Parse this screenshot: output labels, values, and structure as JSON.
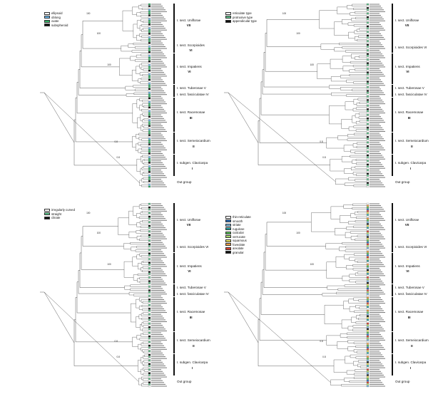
{
  "panels": [
    {
      "id": "tl",
      "legend": {
        "items": [
          {
            "label": "ellipsoid",
            "color": "#ffffff"
          },
          {
            "label": "oblong",
            "color": "#6bb5e8"
          },
          {
            "label": "ovate",
            "color": "#33b366"
          },
          {
            "label": "subspheroid",
            "color": "#111111"
          }
        ]
      },
      "sections": [
        {
          "name": "I. sect. Uniflorae",
          "roman": "VII"
        },
        {
          "name": "I. sect. Scorpioides",
          "roman": "VI"
        },
        {
          "name": "I. sect. Impatiens",
          "roman": "VI"
        },
        {
          "name": "I. sect. Tuberosae V",
          "roman": ""
        },
        {
          "name": "I. sect. fasciculatae IV",
          "roman": ""
        },
        {
          "name": "I. sect. Racemosae",
          "roman": "III"
        },
        {
          "name": "I. sect. Semeiocardium",
          "roman": "II"
        },
        {
          "name": "I. subgen. Clavicarpa",
          "roman": "I"
        },
        {
          "name": "Out group",
          "roman": ""
        }
      ]
    },
    {
      "id": "tr",
      "legend": {
        "items": [
          {
            "label": "reticulate type",
            "color": "#ffffff"
          },
          {
            "label": "protrusive type",
            "color": "#5fc08a"
          },
          {
            "label": "appendicular type",
            "color": "#111111"
          }
        ]
      },
      "sections": [
        {
          "name": "I. sect. Uniflorae",
          "roman": "VII"
        },
        {
          "name": "I. sect. Scorpioides VI",
          "roman": ""
        },
        {
          "name": "I. sect. Impatiens",
          "roman": "VI"
        },
        {
          "name": "I. sect. Tuberosae V",
          "roman": ""
        },
        {
          "name": "I. sect. fasciculatae IV",
          "roman": ""
        },
        {
          "name": "I. sect. Racemosae",
          "roman": "III"
        },
        {
          "name": "I. sect. Semeiocardium",
          "roman": "II"
        },
        {
          "name": "I. subgen. Clavicarpa",
          "roman": "I"
        },
        {
          "name": "Out group",
          "roman": ""
        }
      ]
    },
    {
      "id": "bl",
      "legend": {
        "items": [
          {
            "label": "irregularly curved",
            "color": "#ffffff"
          },
          {
            "label": "straight",
            "color": "#5fc08a"
          },
          {
            "label": "clinate",
            "color": "#111111"
          }
        ]
      },
      "sections": [
        {
          "name": "I. sect. Uniflorae",
          "roman": "VII"
        },
        {
          "name": "I. sect. Scorpioides VI",
          "roman": ""
        },
        {
          "name": "I. sect. Impatiens",
          "roman": "VI"
        },
        {
          "name": "I. sect. Tuberosae V",
          "roman": ""
        },
        {
          "name": "I. sect. fasciculatae IV",
          "roman": ""
        },
        {
          "name": "I. sect. Racemosae",
          "roman": "III"
        },
        {
          "name": "I. sect. Semeiocardium",
          "roman": "II"
        },
        {
          "name": "I. subgen. Clavicarpa",
          "roman": "I"
        },
        {
          "name": "Out group",
          "roman": ""
        }
      ]
    },
    {
      "id": "br",
      "legend": {
        "items": [
          {
            "label": "thin-reticulate",
            "color": "#ffffff"
          },
          {
            "label": "smooth",
            "color": "#2f6fb8"
          },
          {
            "label": "striate",
            "color": "#7ab8e0"
          },
          {
            "label": "rugulose",
            "color": "#2aa0a0"
          },
          {
            "label": "cuticular",
            "color": "#58c058"
          },
          {
            "label": "verrucate",
            "color": "#a6d86a"
          },
          {
            "label": "squamous",
            "color": "#e8e060"
          },
          {
            "label": "foveolate",
            "color": "#e89a40"
          },
          {
            "label": "areolate",
            "color": "#d84030"
          },
          {
            "label": "granular",
            "color": "#111111"
          }
        ]
      },
      "sections": [
        {
          "name": "I. sect. Uniflorae",
          "roman": "VII"
        },
        {
          "name": "I. sect. Scorpioides VI",
          "roman": ""
        },
        {
          "name": "I. sect. Impatiens",
          "roman": "VI"
        },
        {
          "name": "I. sect. Tuberosae V",
          "roman": ""
        },
        {
          "name": "I. sect. fasciculatae IV",
          "roman": ""
        },
        {
          "name": "I. sect. Racemosae",
          "roman": "III"
        },
        {
          "name": "I. sect. Semeiocardium",
          "roman": "II"
        },
        {
          "name": "I. subgen. Clavicarpa",
          "roman": "I"
        },
        {
          "name": "Out group",
          "roman": ""
        }
      ]
    }
  ],
  "node_support_labels": [
    "100",
    "100",
    "100",
    "0.8",
    "0.8"
  ],
  "tip_colors": {
    "tl": [
      "#33b366",
      "#6bb5e8",
      "#ffffff",
      "#111111"
    ],
    "tr": [
      "#5fc08a",
      "#ffffff",
      "#111111"
    ],
    "bl": [
      "#5fc08a",
      "#ffffff",
      "#111111"
    ],
    "br": [
      "#2f6fb8",
      "#7ab8e0",
      "#2aa0a0",
      "#58c058",
      "#a6d86a",
      "#e8e060",
      "#e89a40",
      "#d84030",
      "#111111",
      "#ffffff"
    ]
  }
}
